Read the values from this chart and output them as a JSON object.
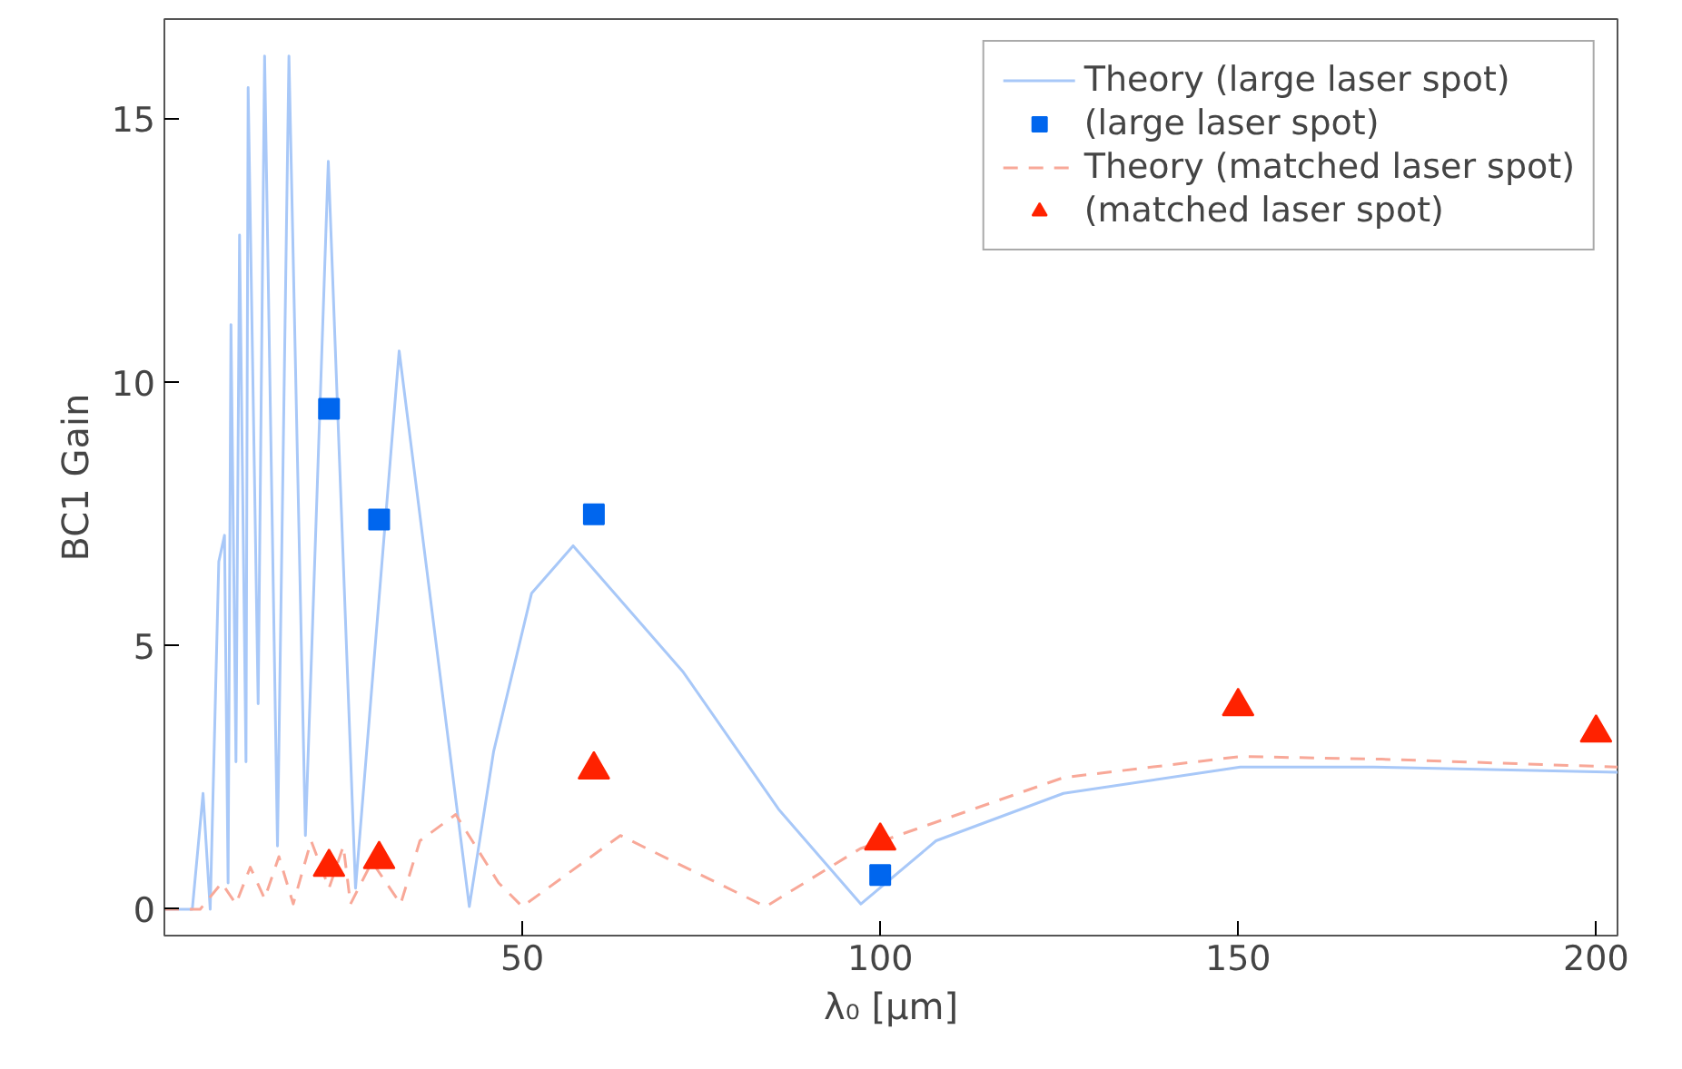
{
  "chart_data": {
    "type": "line",
    "xlabel": "λ₀ [μm]",
    "ylabel": "BC1 Gain",
    "xlim": [
      0,
      203
    ],
    "ylim": [
      -0.5,
      16.9
    ],
    "xticks": [
      50,
      100,
      150,
      200
    ],
    "yticks": [
      0,
      5,
      10,
      15
    ],
    "grid": false,
    "legend": "top right",
    "series": [
      {
        "name": "Theory (large laser spot)",
        "line_style": "solid",
        "color": "#a8c8f8",
        "x": [
          0,
          3.9,
          5.4,
          6.4,
          7.6,
          8.4,
          8.9,
          9.3,
          10,
          10.5,
          11.4,
          11.7,
          13.1,
          14.0,
          15.8,
          17.4,
          19.7,
          22.9,
          26.7,
          32.8,
          42.6,
          46,
          51.3,
          57.1,
          72.5,
          85.8,
          97.3,
          107.8,
          125.6,
          150.3,
          168.9,
          203
        ],
        "values": [
          0,
          0,
          2.2,
          0,
          6.6,
          7.1,
          0.5,
          11.1,
          2.8,
          12.8,
          2.8,
          15.6,
          3.9,
          16.2,
          1.2,
          16.2,
          1.4,
          14.2,
          0.4,
          10.6,
          0.05,
          3.0,
          6.0,
          6.9,
          4.5,
          1.9,
          0.1,
          1.3,
          2.2,
          2.7,
          2.7,
          2.6
        ]
      },
      {
        "name": "(large laser spot)",
        "type": "scatter",
        "marker": "square",
        "color": "#0066ee",
        "x": [
          23,
          30,
          60,
          100
        ],
        "values": [
          9.5,
          7.4,
          7.5,
          0.65
        ]
      },
      {
        "name": "Theory (matched laser spot)",
        "line_style": "dashed",
        "color": "#f8a898",
        "x": [
          0,
          5,
          8,
          10,
          12,
          14,
          16,
          18,
          20.5,
          23,
          25,
          26,
          29,
          33,
          35.7,
          40.7,
          46.7,
          50,
          63.7,
          84,
          97.2,
          125.6,
          150.3,
          170,
          203
        ],
        "values": [
          0,
          0,
          0.5,
          0.1,
          0.8,
          0.2,
          1.0,
          0.1,
          1.3,
          0.4,
          1.2,
          0.1,
          0.9,
          0.1,
          1.3,
          1.8,
          0.5,
          0.05,
          1.4,
          0.05,
          1.15,
          2.5,
          2.9,
          2.85,
          2.7
        ]
      },
      {
        "name": "(matched laser spot)",
        "type": "scatter",
        "marker": "triangle",
        "color": "#ff2200",
        "x": [
          23,
          30,
          60,
          100,
          150,
          200
        ],
        "values": [
          0.8,
          0.95,
          2.65,
          1.3,
          3.85,
          3.35
        ]
      }
    ]
  }
}
